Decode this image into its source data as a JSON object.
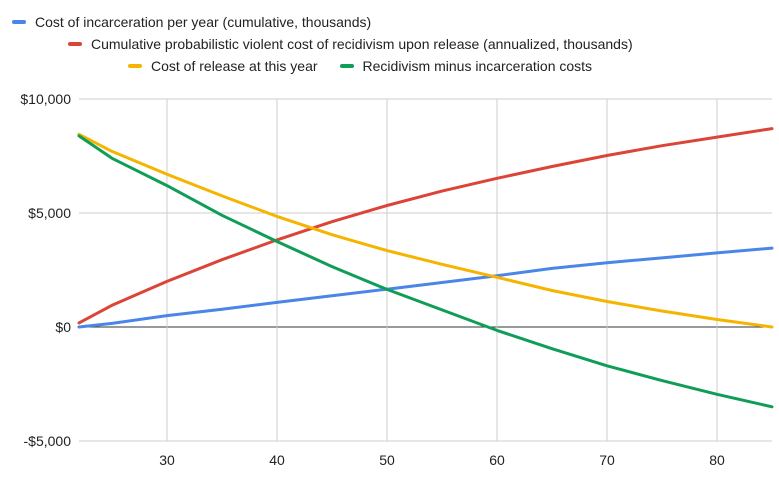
{
  "chart_data": {
    "type": "line",
    "title": "",
    "xlabel": "",
    "ylabel": "",
    "xlim": [
      22,
      85
    ],
    "ylim": [
      -5000,
      10000
    ],
    "x_ticks": [
      30,
      40,
      50,
      60,
      70,
      80
    ],
    "x_tick_labels": [
      "30",
      "40",
      "50",
      "60",
      "70",
      "80"
    ],
    "y_ticks": [
      -5000,
      0,
      5000,
      10000
    ],
    "y_tick_labels": [
      "-$5,000",
      "$0",
      "$5,000",
      "$10,000"
    ],
    "grid": true,
    "legend_position": "top",
    "series": [
      {
        "name": "Cost of incarceration per year (cumulative, thousands)",
        "color": "#4a86e8",
        "points": [
          [
            22,
            0
          ],
          [
            25,
            160
          ],
          [
            30,
            500
          ],
          [
            35,
            780
          ],
          [
            40,
            1080
          ],
          [
            45,
            1370
          ],
          [
            50,
            1660
          ],
          [
            55,
            1950
          ],
          [
            60,
            2250
          ],
          [
            65,
            2570
          ],
          [
            70,
            2820
          ],
          [
            75,
            3030
          ],
          [
            80,
            3250
          ],
          [
            85,
            3460
          ]
        ]
      },
      {
        "name": "Cumulative probabilistic violent cost of recidivism upon release (annualized, thousands)",
        "color": "#db4437",
        "points": [
          [
            22,
            180
          ],
          [
            25,
            950
          ],
          [
            30,
            2000
          ],
          [
            35,
            2950
          ],
          [
            40,
            3820
          ],
          [
            45,
            4620
          ],
          [
            50,
            5330
          ],
          [
            55,
            5960
          ],
          [
            60,
            6520
          ],
          [
            65,
            7040
          ],
          [
            70,
            7520
          ],
          [
            75,
            7950
          ],
          [
            80,
            8330
          ],
          [
            85,
            8700
          ]
        ]
      },
      {
        "name": "Cost of release at this year",
        "color": "#f4b400",
        "points": [
          [
            22,
            8450
          ],
          [
            25,
            7700
          ],
          [
            30,
            6700
          ],
          [
            35,
            5750
          ],
          [
            40,
            4850
          ],
          [
            45,
            4050
          ],
          [
            50,
            3350
          ],
          [
            55,
            2750
          ],
          [
            60,
            2180
          ],
          [
            65,
            1600
          ],
          [
            70,
            1120
          ],
          [
            75,
            700
          ],
          [
            80,
            330
          ],
          [
            85,
            0
          ]
        ]
      },
      {
        "name": "Recidivism minus incarceration costs",
        "color": "#0f9d58",
        "points": [
          [
            22,
            8380
          ],
          [
            25,
            7400
          ],
          [
            30,
            6200
          ],
          [
            35,
            4900
          ],
          [
            40,
            3750
          ],
          [
            45,
            2650
          ],
          [
            50,
            1650
          ],
          [
            55,
            750
          ],
          [
            60,
            -150
          ],
          [
            65,
            -950
          ],
          [
            70,
            -1700
          ],
          [
            75,
            -2350
          ],
          [
            80,
            -2950
          ],
          [
            85,
            -3500
          ]
        ]
      }
    ]
  }
}
